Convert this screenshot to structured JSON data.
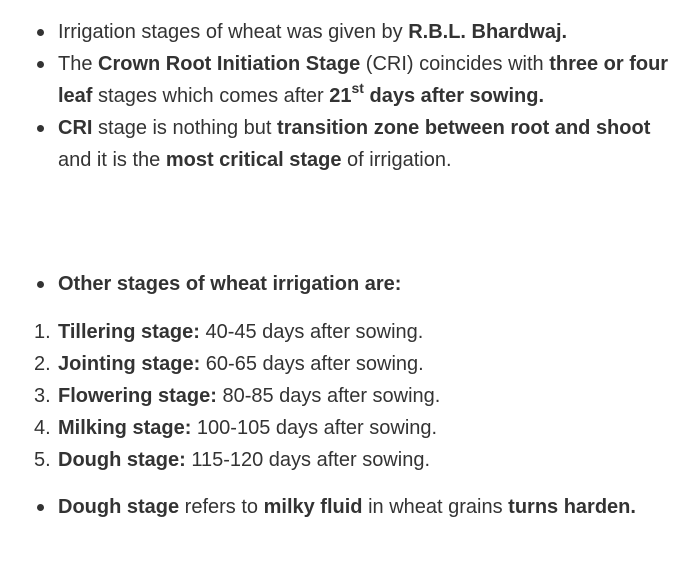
{
  "bullets_top": [
    {
      "t1": "Irrigation stages of wheat was given by ",
      "b1": "R.B.L. Bhardwaj."
    },
    {
      "t1": "The ",
      "b1": "Crown Root Initiation Stage",
      "t2": " (CRI) coincides with ",
      "b2": "three or four leaf",
      "t3": " stages which comes after ",
      "b3": "21",
      "sup": "st",
      "b4": " days after sowing."
    },
    {
      "b1": "CRI",
      "t1": " stage is nothing but ",
      "b2": "transition zone between root and shoot",
      "t2": "  and it is the ",
      "b3": "most critical stage",
      "t3": " of irrigation."
    }
  ],
  "section_heading": "Other stages of wheat irrigation are:",
  "stages": [
    {
      "num": "1.",
      "name": "Tillering stage:",
      "days": " 40-45 days after sowing."
    },
    {
      "num": "2.",
      "name": "Jointing stage:",
      "days": " 60-65 days after sowing."
    },
    {
      "num": "3.",
      "name": "Flowering stage:",
      "days": " 80-85 days after sowing."
    },
    {
      "num": "4.",
      "name": "Milking stage:",
      "days": " 100-105 days after sowing."
    },
    {
      "num": "5.",
      "name": "Dough stage:",
      "days": " 115-120 days after sowing."
    }
  ],
  "bullet_bottom": {
    "b1": "Dough stage",
    "t1": " refers to ",
    "b2": "milky fluid",
    "t2": " in wheat grains ",
    "b3": "turns harden."
  }
}
